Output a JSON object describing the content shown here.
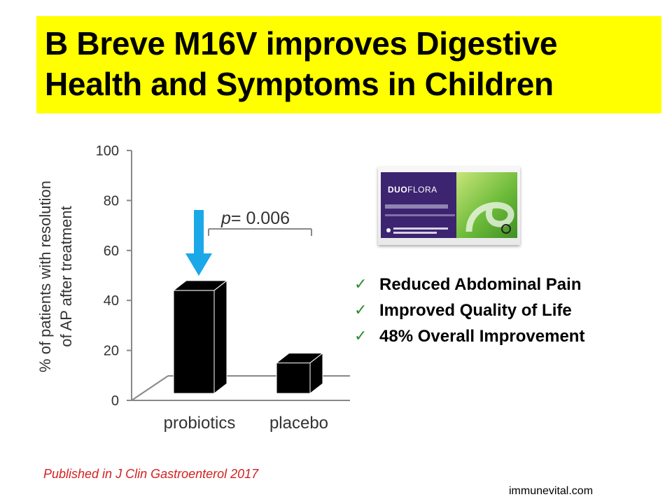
{
  "title": {
    "line1": "B Breve M16V improves Digestive",
    "line2": "Health and Symptoms in Children"
  },
  "chart_data": {
    "type": "bar",
    "categories": [
      "probiotics",
      "placebo"
    ],
    "values": [
      44,
      15
    ],
    "ylabel_line1": "% of patients with resolution",
    "ylabel_line2": "of AP after treatment",
    "yticks": [
      0,
      20,
      40,
      60,
      80,
      100
    ],
    "ylim": [
      0,
      100
    ],
    "annotation": {
      "italic": "p",
      "rest": "= 0.006"
    },
    "bar_color": "#000000",
    "arrow_color": "#1ba8e8",
    "grid": false
  },
  "product": {
    "brand_a": "DUO",
    "brand_b": "FLORA",
    "box_color": "#3d2470",
    "accent_color": "#6ebc3a"
  },
  "benefits": [
    {
      "text": "Reduced Abdominal Pain"
    },
    {
      "text": "Improved Quality of Life"
    },
    {
      "text": "48% Overall Improvement"
    }
  ],
  "check_symbol": "✓",
  "citation": "Published in J Clin Gastroenterol 2017",
  "website": "immunevital.com",
  "colors": {
    "title_bg": "#ffff00",
    "citation": "#d42020",
    "check": "#2e8b2e"
  }
}
